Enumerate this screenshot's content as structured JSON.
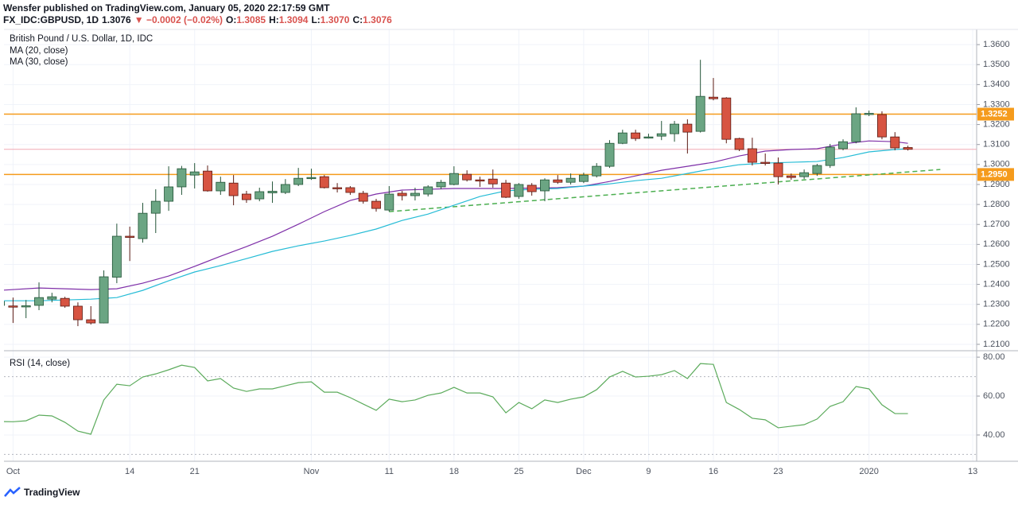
{
  "header": {
    "byline": "Wensfer published on TradingView.com, January 05, 2020 22:17:59 GMT",
    "symbol": "FX_IDC:GBPUSD, 1D",
    "last": "1.3076",
    "change": "▼ −0.0002 (−0.02%)",
    "ohlc": [
      {
        "label": "O:",
        "value": "1.3085"
      },
      {
        "label": "H:",
        "value": "1.3094"
      },
      {
        "label": "L:",
        "value": "1.3070"
      },
      {
        "label": "C:",
        "value": "1.3076"
      }
    ]
  },
  "footer": "TradingView",
  "chart_data": {
    "type": "candlestick",
    "title": "British Pound / U.S. Dollar, 1D, IDC",
    "x": [
      -1,
      0,
      1,
      2,
      3,
      4,
      5,
      6,
      7,
      8,
      9,
      10,
      11,
      12,
      13,
      14,
      15,
      16,
      17,
      18,
      19,
      20,
      21,
      22,
      23,
      24,
      25,
      26,
      27,
      28,
      29,
      30,
      31,
      32,
      33,
      34,
      35,
      36,
      37,
      38,
      39,
      40,
      41,
      42,
      43,
      44,
      45,
      46,
      47,
      48,
      49,
      50,
      51,
      52,
      53,
      54,
      55,
      56,
      57,
      58,
      59,
      60,
      61,
      62,
      63,
      64,
      65,
      66,
      67,
      68,
      69
    ],
    "open": [
      1.2295,
      1.2292,
      1.2291,
      1.2295,
      1.2326,
      1.233,
      1.2291,
      1.2223,
      1.2207,
      1.2436,
      1.2641,
      1.2629,
      1.2756,
      1.2816,
      1.2888,
      1.2947,
      1.2967,
      1.2868,
      1.2907,
      1.2852,
      1.2828,
      1.2858,
      1.286,
      1.29,
      1.2931,
      1.2939,
      1.2884,
      1.2884,
      1.2856,
      1.2816,
      1.2772,
      1.2856,
      1.2844,
      1.2852,
      1.2888,
      1.29,
      1.2951,
      1.2923,
      1.2927,
      1.2907,
      1.284,
      1.2896,
      1.2868,
      1.2923,
      1.2911,
      1.2915,
      1.2943,
      1.2991,
      1.3106,
      1.3158,
      1.3136,
      1.3142,
      1.3154,
      1.3202,
      1.3166,
      1.3337,
      1.3333,
      1.313,
      1.3079,
      1.3011,
      1.3007,
      1.2943,
      1.2939,
      1.2955,
      1.2995,
      1.3079,
      1.3114,
      1.3252,
      1.325,
      1.3138,
      1.3085
    ],
    "high": [
      1.2342,
      1.2334,
      1.2322,
      1.241,
      1.2358,
      1.2338,
      1.231,
      1.2291,
      1.247,
      1.2704,
      1.2689,
      1.2808,
      1.2876,
      1.2991,
      1.2993,
      1.3007,
      1.2995,
      1.2939,
      1.2947,
      1.2868,
      1.2884,
      1.2915,
      1.2927,
      1.2983,
      1.2979,
      1.2947,
      1.2907,
      1.2892,
      1.2868,
      1.2828,
      1.2892,
      1.2868,
      1.2884,
      1.2896,
      1.2923,
      1.2991,
      1.2971,
      1.2939,
      1.2975,
      1.2923,
      1.2907,
      1.2907,
      1.2931,
      1.2947,
      1.2955,
      1.2959,
      1.3007,
      1.3122,
      1.3174,
      1.3174,
      1.3154,
      1.3218,
      1.3218,
      1.3226,
      1.3524,
      1.3433,
      1.3337,
      1.3134,
      1.3134,
      1.3055,
      1.3035,
      1.2955,
      1.2975,
      1.3003,
      1.3103,
      1.3126,
      1.3286,
      1.327,
      1.3266,
      1.3162,
      1.3094
    ],
    "low": [
      1.2251,
      1.2207,
      1.2231,
      1.2271,
      1.231,
      1.2283,
      1.2191,
      1.2199,
      1.2205,
      1.2406,
      1.2517,
      1.2609,
      1.2657,
      1.2768,
      1.2848,
      1.288,
      1.2864,
      1.2848,
      1.2796,
      1.2808,
      1.2816,
      1.2808,
      1.2852,
      1.2892,
      1.2923,
      1.288,
      1.286,
      1.2848,
      1.2804,
      1.2764,
      1.2764,
      1.282,
      1.282,
      1.284,
      1.2876,
      1.2896,
      1.2915,
      1.2888,
      1.2884,
      1.2832,
      1.2828,
      1.2844,
      1.2816,
      1.2903,
      1.29,
      1.2907,
      1.2935,
      1.2983,
      1.3102,
      1.3118,
      1.313,
      1.3122,
      1.3114,
      1.3055,
      1.316,
      1.3321,
      1.3106,
      1.3067,
      1.2995,
      1.2995,
      1.29,
      1.2923,
      1.2927,
      1.2943,
      1.2983,
      1.3071,
      1.3106,
      1.3242,
      1.3126,
      1.3071,
      1.307
    ],
    "close": [
      1.2314,
      1.229,
      1.2293,
      1.2334,
      1.2338,
      1.2291,
      1.2223,
      1.2207,
      1.2438,
      1.2641,
      1.2635,
      1.2756,
      1.2816,
      1.2888,
      1.2979,
      1.2963,
      1.2868,
      1.2911,
      1.2844,
      1.2824,
      1.2864,
      1.2866,
      1.29,
      1.2931,
      1.2935,
      1.2884,
      1.288,
      1.286,
      1.2816,
      1.278,
      1.2852,
      1.2844,
      1.2856,
      1.2888,
      1.2911,
      1.2955,
      1.2923,
      1.2919,
      1.2903,
      1.2836,
      1.29,
      1.2864,
      1.2923,
      1.2911,
      1.2931,
      1.2947,
      1.2991,
      1.3106,
      1.3158,
      1.313,
      1.3138,
      1.3154,
      1.3202,
      1.3162,
      1.3341,
      1.3329,
      1.3126,
      1.3075,
      1.3011,
      1.3007,
      1.2939,
      1.2935,
      1.2959,
      1.2995,
      1.3087,
      1.3114,
      1.3254,
      1.3256,
      1.3138,
      1.3083,
      1.3076
    ],
    "up_color": "#6ba583",
    "down_color": "#d75442",
    "up_wick": "#225437",
    "down_wick": "#5b1a13",
    "xlim": [
      -0.7,
      74.3
    ],
    "ylim": [
      1.2068,
      1.3676
    ],
    "xticks": [
      {
        "value": 0,
        "label": "Oct"
      },
      {
        "value": 9,
        "label": "14"
      },
      {
        "value": 14,
        "label": "21"
      },
      {
        "value": 23,
        "label": "Nov"
      },
      {
        "value": 29,
        "label": "11"
      },
      {
        "value": 34,
        "label": "18"
      },
      {
        "value": 39,
        "label": "25"
      },
      {
        "value": 44,
        "label": "Dec"
      },
      {
        "value": 49,
        "label": "9"
      },
      {
        "value": 54,
        "label": "16"
      },
      {
        "value": 59,
        "label": "23"
      },
      {
        "value": 66,
        "label": "2020"
      },
      {
        "value": 74,
        "label": "13"
      }
    ],
    "yticks": [
      {
        "value": 1.21,
        "label": "1.2100"
      },
      {
        "value": 1.22,
        "label": "1.2200"
      },
      {
        "value": 1.23,
        "label": "1.2300"
      },
      {
        "value": 1.24,
        "label": "1.2400"
      },
      {
        "value": 1.25,
        "label": "1.2500"
      },
      {
        "value": 1.26,
        "label": "1.2600"
      },
      {
        "value": 1.27,
        "label": "1.2700"
      },
      {
        "value": 1.28,
        "label": "1.2800"
      },
      {
        "value": 1.29,
        "label": "1.2900"
      },
      {
        "value": 1.3,
        "label": "1.3000"
      },
      {
        "value": 1.31,
        "label": "1.3100"
      },
      {
        "value": 1.32,
        "label": "1.3200"
      },
      {
        "value": 1.33,
        "label": "1.3300"
      },
      {
        "value": 1.34,
        "label": "1.3400"
      },
      {
        "value": 1.35,
        "label": "1.3500"
      },
      {
        "value": 1.36,
        "label": "1.3600"
      }
    ],
    "grid": true,
    "lines": [
      {
        "name": "MA (20, close)",
        "color": "#7e2fa8",
        "x": [
          -1,
          2,
          6,
          8,
          10,
          12,
          14,
          16,
          18,
          20,
          22,
          24,
          26,
          28,
          30,
          34,
          38,
          42,
          44,
          46,
          48,
          50,
          52,
          54,
          56,
          58,
          60,
          62,
          64,
          66,
          68,
          69
        ],
        "values": [
          1.237,
          1.2382,
          1.2374,
          1.2378,
          1.2406,
          1.2442,
          1.249,
          1.2541,
          1.2589,
          1.2641,
          1.2701,
          1.2764,
          1.282,
          1.2852,
          1.2872,
          1.288,
          1.288,
          1.2884,
          1.2892,
          1.2915,
          1.2943,
          1.2971,
          1.2991,
          1.3011,
          1.3043,
          1.3067,
          1.3075,
          1.3079,
          1.3103,
          1.3118,
          1.3114,
          1.3106
        ]
      },
      {
        "name": "MA (30, close)",
        "color": "#26bcd6",
        "x": [
          -1,
          2,
          6,
          8,
          10,
          12,
          14,
          16,
          18,
          20,
          22,
          24,
          26,
          28,
          30,
          32,
          34,
          36,
          38,
          40,
          42,
          44,
          46,
          48,
          50,
          52,
          54,
          56,
          58,
          60,
          62,
          64,
          66,
          68,
          69
        ],
        "values": [
          1.2318,
          1.2318,
          1.2326,
          1.2334,
          1.237,
          1.2418,
          1.2462,
          1.2494,
          1.2529,
          1.2565,
          1.2593,
          1.2617,
          1.2645,
          1.2677,
          1.272,
          1.2752,
          1.2796,
          1.284,
          1.2868,
          1.2876,
          1.288,
          1.2892,
          1.2903,
          1.2919,
          1.2931,
          1.2955,
          1.2979,
          1.2999,
          1.3007,
          1.3011,
          1.3015,
          1.3035,
          1.3063,
          1.3075,
          1.3079
        ]
      }
    ],
    "hlines": [
      {
        "value": 1.3252,
        "label": "1.3252",
        "color": "#f59b1c"
      },
      {
        "value": 1.295,
        "label": "1.2950",
        "color": "#f59b1c"
      }
    ],
    "trendline": {
      "x": [
        29,
        71.5
      ],
      "values": [
        1.2764,
        1.2975
      ],
      "color": "#4caf50"
    },
    "last_price_color": "#f0a8b4",
    "rsi": {
      "name": "RSI (14, close)",
      "color": "#5cab5c",
      "ylim": [
        26.5,
        82.9
      ],
      "bands": [
        70,
        30
      ],
      "yticks": [
        {
          "value": 40,
          "label": "40.00"
        },
        {
          "value": 60,
          "label": "60.00"
        },
        {
          "value": 80,
          "label": "80.00"
        }
      ],
      "values": [
        46.9,
        46.8,
        47.3,
        50.2,
        49.8,
        46.5,
        42.0,
        40.4,
        58.0,
        66.1,
        65.3,
        69.8,
        71.4,
        73.5,
        75.9,
        74.7,
        67.8,
        69.0,
        64.1,
        62.4,
        63.7,
        63.7,
        65.3,
        66.9,
        67.3,
        62.0,
        62.0,
        59.2,
        55.9,
        52.7,
        58.4,
        57.1,
        58.0,
        60.4,
        61.6,
        64.5,
        61.6,
        61.6,
        59.6,
        51.4,
        56.7,
        53.5,
        58.0,
        56.7,
        58.4,
        59.6,
        63.3,
        69.8,
        72.7,
        69.8,
        70.2,
        71.0,
        73.1,
        69.0,
        76.7,
        76.3,
        56.7,
        53.1,
        48.6,
        47.8,
        43.7,
        44.5,
        45.3,
        48.2,
        54.7,
        57.1,
        64.9,
        63.7,
        55.5,
        51.0,
        51.0
      ]
    }
  }
}
